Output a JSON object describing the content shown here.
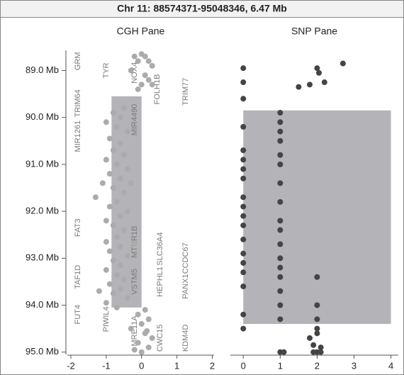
{
  "header": {
    "title": "Chr 11: 88574371-95048346, 6.47 Mb"
  },
  "chart_data": [
    {
      "type": "scatter",
      "title": "CGH Pane",
      "color": "#ababab",
      "x": [
        -0.2,
        0.0,
        0.1,
        -0.1,
        0.2,
        0.3,
        -0.3,
        0.1,
        0.2,
        0.0,
        0.3,
        -0.1,
        -0.5,
        -0.8,
        -0.6,
        -1.0,
        -0.7,
        -0.4,
        -0.9,
        -0.6,
        -0.8,
        -0.5,
        -1.0,
        -0.7,
        -0.4,
        -0.9,
        -0.6,
        -1.1,
        -0.8,
        -0.5,
        -1.3,
        -0.7,
        -0.9,
        -0.4,
        -0.6,
        -1.0,
        -0.8,
        -0.5,
        -0.7,
        -1.0,
        -0.6,
        -0.9,
        -0.4,
        -0.8,
        -0.6,
        -1.0,
        -0.7,
        -0.5,
        -0.9,
        -0.6,
        -0.8,
        -0.4,
        -1.0,
        -0.7,
        0.1,
        -0.1,
        0.2,
        0.0,
        -0.3,
        0.1,
        0.3,
        -0.1,
        0.2,
        0.0,
        -0.2,
        0.15,
        -1.2,
        -0.3,
        -0.2
      ],
      "values": [
        88.7,
        88.65,
        88.7,
        88.8,
        88.8,
        88.9,
        89.0,
        89.1,
        89.2,
        89.3,
        89.3,
        89.4,
        89.8,
        89.9,
        90.0,
        90.1,
        90.2,
        90.3,
        90.45,
        90.55,
        90.7,
        90.8,
        90.9,
        91.0,
        91.1,
        91.2,
        91.3,
        91.4,
        91.5,
        91.6,
        91.7,
        91.8,
        91.9,
        92.0,
        92.1,
        92.2,
        92.3,
        92.4,
        92.55,
        92.65,
        92.75,
        92.85,
        92.95,
        93.05,
        93.15,
        93.25,
        93.35,
        93.45,
        93.55,
        93.65,
        93.75,
        93.85,
        93.95,
        94.05,
        94.1,
        94.2,
        94.3,
        94.4,
        94.5,
        94.6,
        94.7,
        94.8,
        94.9,
        95.0,
        94.95,
        94.55,
        93.7,
        91.4,
        92.7
      ],
      "xlim": [
        -2.1,
        2.05
      ],
      "xticks": [
        -2,
        -1,
        0,
        1,
        2
      ],
      "ylim": [
        88.57,
        95.05
      ],
      "y_inverted": true,
      "yticks": [
        {
          "value": 89,
          "label": "89.0 Mb"
        },
        {
          "value": 90,
          "label": "90.0 Mb"
        },
        {
          "value": 91,
          "label": "91.0 Mb"
        },
        {
          "value": 92,
          "label": "92.0 Mb"
        },
        {
          "value": 93,
          "label": "93.0 Mb"
        },
        {
          "value": 94,
          "label": "94.0 Mb"
        },
        {
          "value": 95,
          "label": "95.0 Mb"
        }
      ],
      "regions": [
        {
          "x": [
            -0.85,
            0
          ],
          "y": [
            89.55,
            94.05
          ]
        }
      ],
      "region_color": "#b4b4b8",
      "genes": [
        {
          "name": "GRM",
          "mb": 88.8
        },
        {
          "name": "TYR",
          "mb": 89.0
        },
        {
          "name": "NOX4",
          "mb": 89.05
        },
        {
          "name": "FOLH1B",
          "mb": 89.4
        },
        {
          "name": "TRIM77",
          "mb": 89.45
        },
        {
          "name": "TRIM64",
          "mb": 89.7
        },
        {
          "name": "MIR1261",
          "mb": 90.4
        },
        {
          "name": "MIR4490",
          "mb": 90.05
        },
        {
          "name": "FAT3",
          "mb": 92.35
        },
        {
          "name": "MTNR1B",
          "mb": 92.65
        },
        {
          "name": "SLC36A4",
          "mb": 92.8
        },
        {
          "name": "CCDC67",
          "mb": 93.0
        },
        {
          "name": "TAF1D",
          "mb": 93.4
        },
        {
          "name": "VSTM5",
          "mb": 93.5
        },
        {
          "name": "HEPHL1",
          "mb": 93.5
        },
        {
          "name": "PANX1",
          "mb": 93.6
        },
        {
          "name": "FUT4",
          "mb": 94.2
        },
        {
          "name": "PIWIL4",
          "mb": 94.3
        },
        {
          "name": "MRE11A",
          "mb": 94.55
        },
        {
          "name": "CWC15",
          "mb": 94.7
        },
        {
          "name": "KDM4D",
          "mb": 94.7
        }
      ]
    },
    {
      "type": "scatter",
      "title": "SNP Pane",
      "color": "#444444",
      "x": [
        0,
        0,
        0,
        0,
        0,
        0,
        0,
        0,
        0,
        0,
        0,
        0,
        0,
        0,
        0,
        0,
        0,
        0,
        0,
        1,
        1,
        1,
        1,
        1,
        1,
        1,
        1,
        1,
        1,
        1,
        1,
        1,
        1,
        1,
        1,
        1,
        1,
        2,
        2,
        2,
        2,
        2,
        2.7,
        2.0,
        2.05,
        2.2,
        1.5,
        1.8,
        1.8,
        1.9,
        2.1,
        1.1,
        1.9,
        2.1,
        2.0
      ],
      "values": [
        88.95,
        89.25,
        89.6,
        90.2,
        90.7,
        90.9,
        91.1,
        91.3,
        91.7,
        91.9,
        92.1,
        92.3,
        92.6,
        92.9,
        93.1,
        93.3,
        93.6,
        94.2,
        94.5,
        89.9,
        90.1,
        90.3,
        90.5,
        90.8,
        91.0,
        91.4,
        91.8,
        92.2,
        92.4,
        92.7,
        93.0,
        93.2,
        93.4,
        93.7,
        94.0,
        94.3,
        95.0,
        93.4,
        94.0,
        94.3,
        94.6,
        95.0,
        88.85,
        88.95,
        89.05,
        89.25,
        89.35,
        89.3,
        94.7,
        94.85,
        94.9,
        95.0,
        95.0,
        95.0,
        94.5
      ],
      "xlim": [
        -0.35,
        4.2
      ],
      "xticks": [
        0,
        1,
        2,
        3,
        4
      ],
      "ylim": [
        88.57,
        95.05
      ],
      "y_inverted": true,
      "regions": [
        {
          "x": [
            0,
            4
          ],
          "y": [
            89.85,
            94.4
          ]
        }
      ],
      "region_color": "#b4b4b8"
    }
  ]
}
